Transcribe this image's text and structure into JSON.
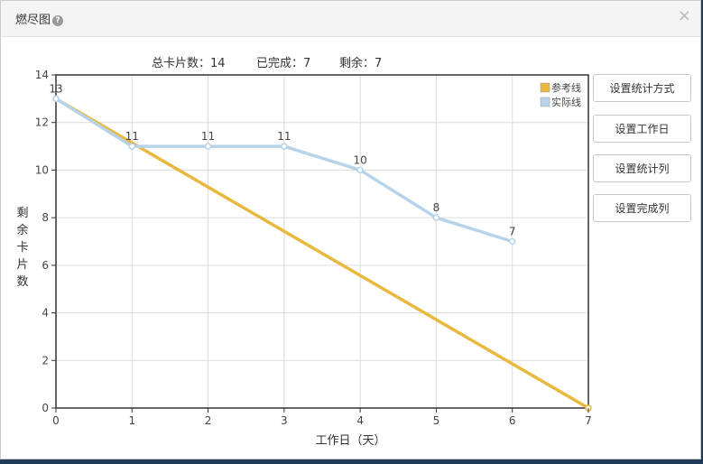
{
  "dialog": {
    "title": "燃尽图",
    "help_icon": "?",
    "close_icon": "×"
  },
  "stats": {
    "total": "总卡片数：14",
    "done": "已完成：7",
    "remaining": "剩余：7"
  },
  "buttons": {
    "stat_mode": "设置统计方式",
    "workdays": "设置工作日",
    "stat_column": "设置统计列",
    "done_column": "设置完成列"
  },
  "chart_data": {
    "type": "line",
    "xlabel": "工作日（天）",
    "ylabel": "剩余卡片数",
    "x": [
      0,
      1,
      2,
      3,
      4,
      5,
      6,
      7
    ],
    "xlim": [
      0,
      7
    ],
    "ylim": [
      0,
      14
    ],
    "yticks": [
      0,
      2,
      4,
      6,
      8,
      10,
      12,
      14
    ],
    "grid": true,
    "legend_position": "top-right",
    "series": [
      {
        "name": "参考线",
        "color": "#e8b83f",
        "points": [
          [
            0,
            13
          ],
          [
            7,
            0
          ]
        ],
        "labels": false
      },
      {
        "name": "实际线",
        "color": "#b7d3ea",
        "points": [
          [
            0,
            13
          ],
          [
            1,
            11
          ],
          [
            2,
            11
          ],
          [
            3,
            11
          ],
          [
            4,
            10
          ],
          [
            5,
            8
          ],
          [
            6,
            7
          ]
        ],
        "labels": true
      }
    ]
  }
}
